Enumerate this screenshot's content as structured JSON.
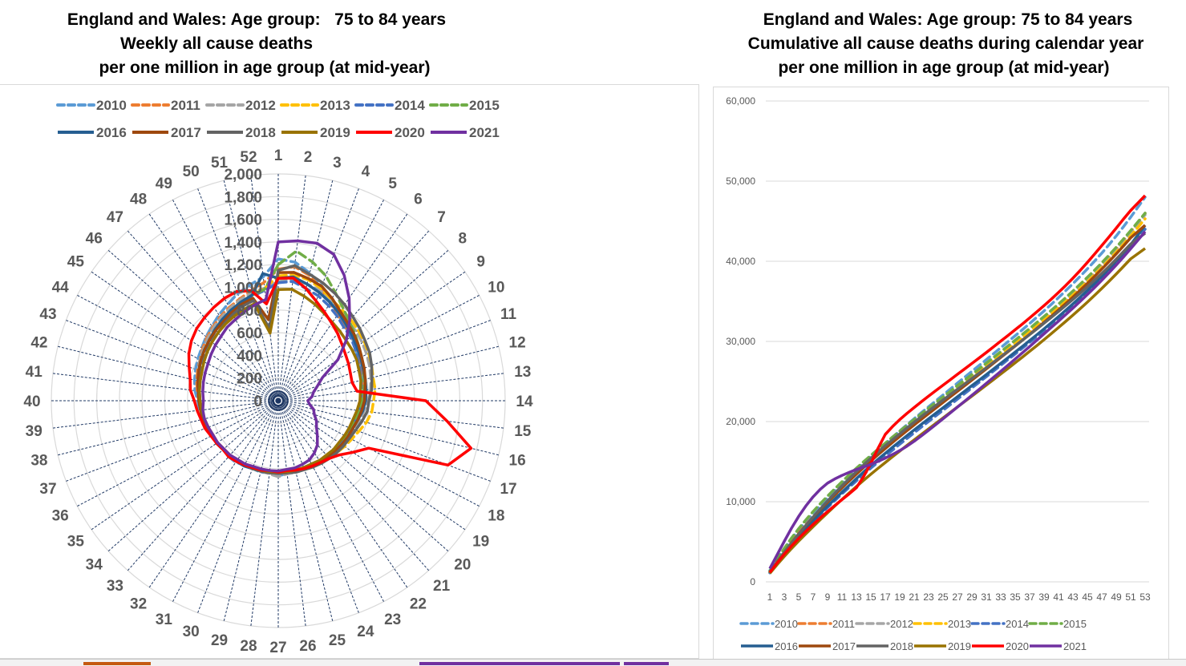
{
  "radar": {
    "title_lines": [
      "England and Wales: Age group:   75 to 84 years",
      "Weekly all cause deaths",
      "per one million in age group (at mid-year)"
    ]
  },
  "cumulative": {
    "title_lines": [
      "England and Wales: Age group: 75 to 84 years",
      "Cumulative all cause deaths during calendar year",
      "per one million in age group (at mid-year)"
    ]
  },
  "chart_data": [
    {
      "type": "radar",
      "title": "England and Wales: Age group: 75 to 84 years — Weekly all cause deaths per one million in age group (at mid-year)",
      "categories": [
        "1",
        "2",
        "3",
        "4",
        "5",
        "6",
        "7",
        "8",
        "9",
        "10",
        "11",
        "12",
        "13",
        "14",
        "15",
        "16",
        "17",
        "18",
        "19",
        "20",
        "21",
        "22",
        "23",
        "24",
        "25",
        "26",
        "27",
        "28",
        "29",
        "30",
        "31",
        "32",
        "33",
        "34",
        "35",
        "36",
        "37",
        "38",
        "39",
        "40",
        "41",
        "42",
        "43",
        "44",
        "45",
        "46",
        "47",
        "48",
        "49",
        "50",
        "51",
        "52"
      ],
      "r_ticks": [
        "0",
        "200",
        "400",
        "600",
        "800",
        "1,000",
        "1,200",
        "1,400",
        "1,600",
        "1,800",
        "2,000"
      ],
      "r_range": [
        0,
        2000
      ],
      "legend_position": "top",
      "series": [
        {
          "name": "2010",
          "color": "#5B9BD5",
          "dash": true,
          "values": [
            1250,
            1230,
            1160,
            1080,
            1000,
            930,
            880,
            860,
            830,
            790,
            780,
            770,
            760,
            740,
            720,
            700,
            700,
            690,
            690,
            680,
            670,
            660,
            650,
            650,
            640,
            650,
            660,
            640,
            650,
            640,
            640,
            660,
            660,
            650,
            660,
            660,
            680,
            690,
            700,
            710,
            740,
            760,
            780,
            800,
            820,
            850,
            880,
            920,
            960,
            1010,
            1050,
            1100
          ]
        },
        {
          "name": "2011",
          "color": "#ED7D31",
          "dash": true,
          "values": [
            1160,
            1190,
            1140,
            1060,
            980,
            920,
            880,
            860,
            840,
            800,
            790,
            780,
            760,
            750,
            740,
            710,
            700,
            690,
            690,
            680,
            660,
            650,
            640,
            640,
            640,
            640,
            640,
            630,
            640,
            630,
            640,
            650,
            650,
            640,
            650,
            650,
            660,
            670,
            690,
            700,
            720,
            740,
            760,
            780,
            810,
            840,
            870,
            900,
            930,
            960,
            1000,
            1050
          ]
        },
        {
          "name": "2012",
          "color": "#A5A5A5",
          "dash": true,
          "values": [
            1050,
            1080,
            1060,
            1040,
            1000,
            960,
            930,
            920,
            900,
            880,
            860,
            840,
            820,
            790,
            760,
            740,
            720,
            700,
            700,
            690,
            680,
            670,
            660,
            650,
            650,
            650,
            670,
            650,
            640,
            640,
            650,
            650,
            650,
            650,
            660,
            660,
            670,
            680,
            690,
            700,
            710,
            730,
            750,
            780,
            800,
            830,
            860,
            890,
            920,
            950,
            980,
            1000
          ]
        },
        {
          "name": "2013",
          "color": "#FFC000",
          "dash": true,
          "values": [
            1100,
            1120,
            1100,
            1060,
            1010,
            980,
            960,
            940,
            920,
            900,
            880,
            860,
            860,
            840,
            830,
            800,
            760,
            730,
            710,
            690,
            680,
            670,
            660,
            650,
            640,
            640,
            640,
            630,
            640,
            640,
            640,
            650,
            650,
            650,
            660,
            660,
            670,
            680,
            690,
            700,
            710,
            730,
            750,
            770,
            790,
            810,
            840,
            870,
            900,
            930,
            960,
            1000
          ]
        },
        {
          "name": "2014",
          "color": "#4472C4",
          "dash": true,
          "values": [
            1040,
            1060,
            1020,
            990,
            950,
            910,
            870,
            850,
            820,
            790,
            770,
            750,
            740,
            730,
            720,
            700,
            690,
            680,
            670,
            660,
            650,
            650,
            640,
            640,
            640,
            640,
            640,
            640,
            640,
            640,
            650,
            650,
            650,
            650,
            650,
            660,
            660,
            670,
            680,
            690,
            700,
            720,
            740,
            760,
            780,
            800,
            830,
            860,
            890,
            920,
            950,
            980
          ]
        },
        {
          "name": "2015",
          "color": "#70AD47",
          "dash": true,
          "values": [
            1200,
            1330,
            1260,
            1180,
            1080,
            1000,
            940,
            900,
            860,
            830,
            800,
            780,
            760,
            740,
            720,
            700,
            690,
            680,
            680,
            670,
            660,
            650,
            640,
            640,
            640,
            640,
            640,
            630,
            640,
            640,
            640,
            650,
            650,
            650,
            660,
            660,
            670,
            680,
            690,
            700,
            710,
            730,
            750,
            770,
            790,
            810,
            840,
            870,
            900,
            930,
            960,
            990
          ]
        },
        {
          "name": "2016",
          "color": "#255E91",
          "dash": false,
          "values": [
            1080,
            1100,
            1060,
            1020,
            980,
            940,
            900,
            870,
            840,
            820,
            800,
            790,
            780,
            770,
            750,
            720,
            700,
            690,
            680,
            670,
            660,
            650,
            650,
            640,
            640,
            640,
            640,
            640,
            640,
            640,
            650,
            650,
            650,
            650,
            660,
            660,
            670,
            680,
            690,
            700,
            710,
            730,
            750,
            770,
            790,
            810,
            840,
            870,
            900,
            930,
            960,
            1130
          ]
        },
        {
          "name": "2017",
          "color": "#9E480E",
          "dash": false,
          "values": [
            1130,
            1140,
            1110,
            1080,
            1020,
            960,
            920,
            890,
            860,
            830,
            810,
            790,
            770,
            760,
            740,
            720,
            700,
            690,
            680,
            670,
            660,
            650,
            640,
            640,
            640,
            640,
            640,
            640,
            640,
            640,
            640,
            650,
            650,
            650,
            660,
            660,
            670,
            680,
            690,
            700,
            710,
            730,
            750,
            770,
            790,
            810,
            830,
            850,
            880,
            910,
            930,
            720
          ]
        },
        {
          "name": "2018",
          "color": "#636363",
          "dash": false,
          "values": [
            1150,
            1200,
            1150,
            1110,
            1070,
            1030,
            990,
            960,
            930,
            910,
            880,
            850,
            830,
            800,
            790,
            760,
            730,
            710,
            700,
            690,
            680,
            670,
            660,
            650,
            650,
            640,
            640,
            640,
            640,
            640,
            640,
            650,
            650,
            650,
            650,
            660,
            660,
            670,
            680,
            690,
            700,
            710,
            720,
            740,
            760,
            780,
            800,
            830,
            860,
            890,
            910,
            640
          ]
        },
        {
          "name": "2019",
          "color": "#997300",
          "dash": false,
          "values": [
            980,
            990,
            950,
            910,
            870,
            840,
            820,
            800,
            790,
            780,
            760,
            750,
            730,
            720,
            700,
            680,
            670,
            660,
            650,
            650,
            640,
            640,
            630,
            630,
            630,
            630,
            630,
            630,
            630,
            630,
            630,
            640,
            640,
            640,
            650,
            650,
            660,
            670,
            680,
            690,
            700,
            710,
            720,
            740,
            760,
            780,
            800,
            820,
            840,
            860,
            880,
            600
          ]
        },
        {
          "name": "2020",
          "color": "#FF0000",
          "dash": false,
          "values": [
            1080,
            1090,
            1020,
            940,
            880,
            830,
            790,
            750,
            720,
            700,
            680,
            670,
            700,
            1300,
            1500,
            1750,
            1600,
            900,
            800,
            720,
            680,
            660,
            650,
            640,
            630,
            620,
            630,
            620,
            630,
            630,
            640,
            650,
            660,
            650,
            660,
            670,
            690,
            700,
            720,
            740,
            780,
            800,
            840,
            890,
            930,
            960,
            980,
            1000,
            1020,
            1030,
            1000,
            860
          ]
        },
        {
          "name": "2021",
          "color": "#7030A0",
          "dash": false,
          "values": [
            1400,
            1420,
            1430,
            1380,
            1250,
            1100,
            950,
            800,
            640,
            440,
            370,
            320,
            300,
            260,
            280,
            320,
            340,
            380,
            410,
            460,
            520,
            560,
            590,
            600,
            610,
            610,
            620,
            620,
            620,
            620,
            630,
            630,
            640,
            640,
            650,
            650,
            660,
            670,
            670,
            660,
            670,
            680,
            690,
            700,
            720,
            740,
            760,
            790,
            810,
            840,
            870,
            900
          ]
        }
      ]
    },
    {
      "type": "line",
      "title": "England and Wales: Age group: 75 to 84 years — Cumulative all cause deaths during calendar year per one million in age group (at mid-year)",
      "xlabel": "",
      "ylabel": "",
      "x_ticks": [
        "1",
        "3",
        "5",
        "7",
        "9",
        "11",
        "13",
        "15",
        "17",
        "19",
        "21",
        "23",
        "25",
        "27",
        "29",
        "31",
        "33",
        "35",
        "37",
        "39",
        "41",
        "43",
        "45",
        "47",
        "49",
        "51",
        "53"
      ],
      "y_ticks": [
        "0",
        "10,000",
        "20,000",
        "30,000",
        "40,000",
        "50,000",
        "60,000"
      ],
      "ylim": [
        0,
        60000
      ],
      "xlim": [
        1,
        53
      ],
      "grid": true,
      "legend_position": "bottom",
      "series_final_values": {
        "2010": 48000,
        "2011": 46000,
        "2012": 45800,
        "2013": 45300,
        "2014": 44000,
        "2015": 46000,
        "2016": 44500,
        "2017": 44500,
        "2018": 43500,
        "2019": 41600,
        "2020": 48200,
        "2021": 43700
      },
      "series_week26_values": {
        "2010": 24300,
        "2011": 24500,
        "2012": 24600,
        "2013": 24700,
        "2014": 23000,
        "2015": 25000,
        "2016": 23600,
        "2017": 23800,
        "2018": 24300,
        "2019": 22400,
        "2020": 26000,
        "2021": 23500
      }
    }
  ]
}
